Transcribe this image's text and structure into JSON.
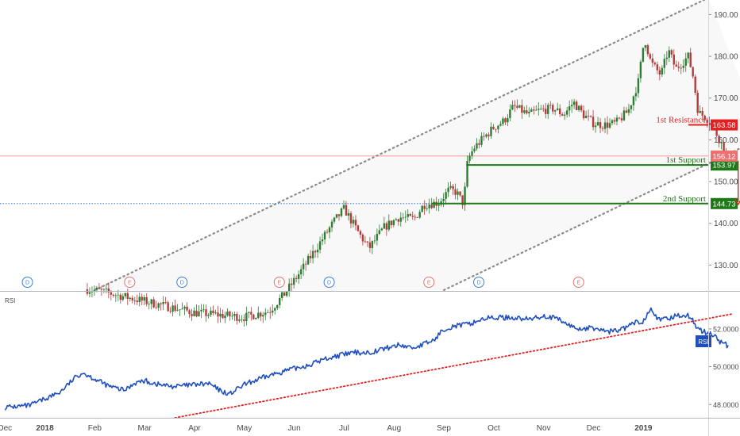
{
  "chart_data": [
    {
      "type": "candlestick",
      "price_axis": {
        "ticks": [
          130,
          140,
          150,
          160,
          170,
          180,
          190
        ],
        "tick_labels": [
          "130.00",
          "140.00",
          "150.00",
          "160.00",
          "170.00",
          "180.00",
          "190.00"
        ],
        "ylim": [
          123.8,
          193.5
        ]
      },
      "time_axis": {
        "labels": [
          "Dec",
          "2018",
          "Feb",
          "Mar",
          "Apr",
          "May",
          "Jun",
          "Jul",
          "Aug",
          "Sep",
          "Oct",
          "Nov",
          "Dec",
          "2019"
        ],
        "bold_labels": [
          "2018",
          "2019"
        ],
        "positions": [
          -0.8,
          0,
          1,
          2,
          3,
          4,
          5,
          6,
          7,
          8,
          9,
          10,
          11,
          12
        ],
        "xlim": [
          -0.9,
          13.3
        ]
      },
      "trend_path": [
        [
          0.85,
          124.2
        ],
        [
          1.1,
          123.8
        ],
        [
          2.0,
          121.3
        ],
        [
          3.0,
          118.6
        ],
        [
          4.0,
          117.5
        ],
        [
          4.5,
          119.0
        ],
        [
          4.8,
          123.0
        ],
        [
          5.1,
          128.0
        ],
        [
          5.3,
          131.5
        ],
        [
          5.55,
          136.0
        ],
        [
          5.8,
          140.5
        ],
        [
          6.0,
          143.5
        ],
        [
          6.3,
          137.5
        ],
        [
          6.5,
          134.0
        ],
        [
          6.8,
          139.0
        ],
        [
          7.1,
          141.5
        ],
        [
          7.4,
          141.0
        ],
        [
          7.6,
          144.5
        ],
        [
          7.9,
          145.0
        ],
        [
          8.1,
          148.0
        ],
        [
          8.25,
          147.5
        ],
        [
          8.4,
          144.5
        ],
        [
          8.45,
          154.5
        ],
        [
          8.6,
          158.0
        ],
        [
          8.8,
          160.5
        ],
        [
          9.0,
          163.0
        ],
        [
          9.2,
          164.5
        ],
        [
          9.4,
          168.0
        ],
        [
          9.7,
          166.0
        ],
        [
          9.9,
          167.0
        ],
        [
          10.2,
          167.5
        ],
        [
          10.4,
          166.0
        ],
        [
          10.6,
          169.0
        ],
        [
          10.8,
          166.0
        ],
        [
          11.0,
          164.0
        ],
        [
          11.2,
          163.5
        ],
        [
          11.45,
          164.0
        ],
        [
          11.7,
          167.0
        ],
        [
          11.9,
          174.0
        ],
        [
          12.02,
          184.5
        ],
        [
          12.15,
          178.5
        ],
        [
          12.35,
          175.5
        ],
        [
          12.5,
          181.5
        ],
        [
          12.65,
          177.0
        ],
        [
          12.9,
          180.0
        ],
        [
          13.0,
          175.0
        ],
        [
          13.1,
          166.5
        ],
        [
          13.25,
          165.5
        ],
        [
          13.4,
          163.0
        ],
        [
          13.55,
          159.5
        ],
        [
          13.68,
          156.0
        ]
      ],
      "channel": {
        "upper": [
          [
            1.0,
            124.0
          ],
          [
            13.3,
            194.0
          ]
        ],
        "lower": [
          [
            8.0,
            124.0
          ],
          [
            14.4,
            160.6
          ]
        ]
      },
      "levels": [
        {
          "label": "1st Resistance",
          "value": 163.58,
          "value_label": "163.58",
          "color": "#e51f1f",
          "x_start": 12.9
        },
        {
          "label": "1st Support",
          "value": 153.97,
          "value_label": "153.97",
          "color": "#1e7a16",
          "x_start": 8.45
        },
        {
          "label": "2nd Support",
          "value": 144.73,
          "value_label": "144.73",
          "color": "#1e7a16",
          "x_start": 7.75
        }
      ],
      "last_price": {
        "value": 156.12,
        "value_label": "156.12",
        "color": "#f07070"
      },
      "prior_close_line": {
        "value": 144.73,
        "color": "#3d7ed6"
      },
      "arrow": {
        "x": 13.9,
        "from": 155.0,
        "to": 144.5,
        "color": "#e51f1f"
      },
      "events": [
        {
          "letter": "D",
          "x": -0.35,
          "color": "#3d7ed6"
        },
        {
          "letter": "E",
          "x": 1.7,
          "color": "#e57373"
        },
        {
          "letter": "D",
          "x": 2.75,
          "color": "#3d7ed6"
        },
        {
          "letter": "E",
          "x": 4.7,
          "color": "#e57373"
        },
        {
          "letter": "D",
          "x": 5.7,
          "color": "#3d7ed6"
        },
        {
          "letter": "E",
          "x": 7.7,
          "color": "#e57373"
        },
        {
          "letter": "D",
          "x": 8.7,
          "color": "#3d7ed6"
        },
        {
          "letter": "E",
          "x": 10.7,
          "color": "#e57373"
        }
      ]
    },
    {
      "type": "line",
      "title": "RSI",
      "series_name": "RSI",
      "color": "#1f4fbf",
      "y_axis": {
        "ticks": [
          48,
          50,
          52
        ],
        "tick_labels": [
          "48.0000",
          "50.0000",
          "52.0000"
        ],
        "ylim": [
          47.3,
          53.8
        ]
      },
      "trend_path": [
        [
          -0.8,
          47.85
        ],
        [
          -0.3,
          47.95
        ],
        [
          0.0,
          48.3
        ],
        [
          0.3,
          48.65
        ],
        [
          0.6,
          49.4
        ],
        [
          0.75,
          49.7
        ],
        [
          1.0,
          49.35
        ],
        [
          1.3,
          48.95
        ],
        [
          1.6,
          48.75
        ],
        [
          1.8,
          49.15
        ],
        [
          2.0,
          49.25
        ],
        [
          2.3,
          49.05
        ],
        [
          2.6,
          48.95
        ],
        [
          3.0,
          49.05
        ],
        [
          3.3,
          49.1
        ],
        [
          3.5,
          48.75
        ],
        [
          3.7,
          48.55
        ],
        [
          4.0,
          49.05
        ],
        [
          4.3,
          49.35
        ],
        [
          4.7,
          49.7
        ],
        [
          5.0,
          49.9
        ],
        [
          5.3,
          50.1
        ],
        [
          5.6,
          50.4
        ],
        [
          5.9,
          50.6
        ],
        [
          6.2,
          50.75
        ],
        [
          6.5,
          50.75
        ],
        [
          6.8,
          50.95
        ],
        [
          7.1,
          51.15
        ],
        [
          7.4,
          51.0
        ],
        [
          7.6,
          51.2
        ],
        [
          7.8,
          51.4
        ],
        [
          8.0,
          52.0
        ],
        [
          8.2,
          52.15
        ],
        [
          8.5,
          52.25
        ],
        [
          8.8,
          52.55
        ],
        [
          9.1,
          52.6
        ],
        [
          9.4,
          52.6
        ],
        [
          9.7,
          52.5
        ],
        [
          10.0,
          52.7
        ],
        [
          10.3,
          52.5
        ],
        [
          10.5,
          52.2
        ],
        [
          10.7,
          52.0
        ],
        [
          11.0,
          52.05
        ],
        [
          11.3,
          51.85
        ],
        [
          11.6,
          52.0
        ],
        [
          11.8,
          52.3
        ],
        [
          12.0,
          52.4
        ],
        [
          12.15,
          53.2
        ],
        [
          12.3,
          52.45
        ],
        [
          12.5,
          52.55
        ],
        [
          12.7,
          52.75
        ],
        [
          12.9,
          52.7
        ],
        [
          13.0,
          52.4
        ],
        [
          13.1,
          52.0
        ],
        [
          13.25,
          51.8
        ],
        [
          13.4,
          51.7
        ],
        [
          13.55,
          51.3
        ],
        [
          13.7,
          51.1
        ]
      ],
      "trendline": {
        "from": [
          2.0,
          47.0
        ],
        "to": [
          13.8,
          52.8
        ],
        "color": "#e51f1f"
      }
    }
  ]
}
